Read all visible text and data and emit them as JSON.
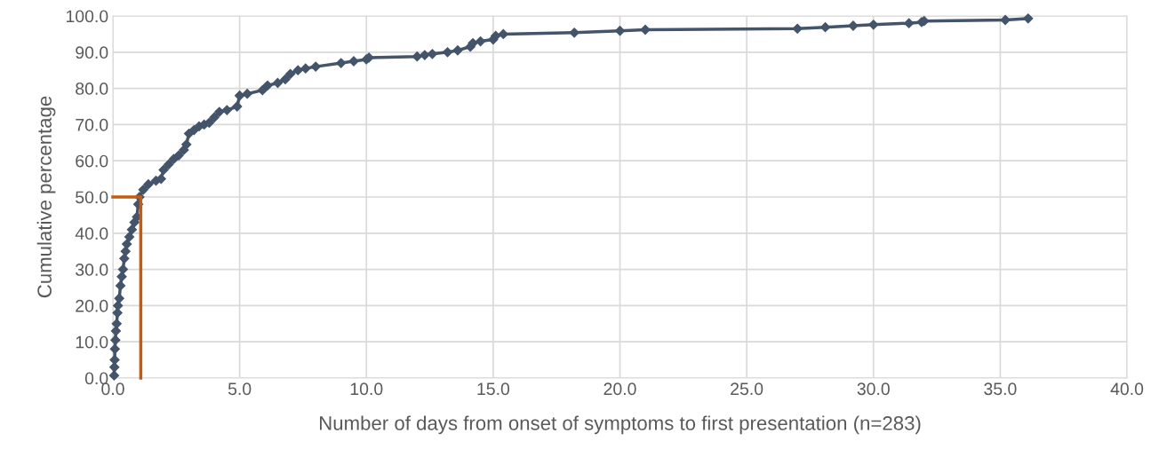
{
  "chart_data": {
    "type": "line",
    "xlabel": "Number of days from onset of symptoms to first presentation (n=283)",
    "ylabel": "Cumulative percentage",
    "xlim": [
      0,
      40
    ],
    "xticks": [
      {
        "value": 0,
        "label": "0.0"
      },
      {
        "value": 5,
        "label": "5.0"
      },
      {
        "value": 10,
        "label": "10.0"
      },
      {
        "value": 15,
        "label": "15.0"
      },
      {
        "value": 20,
        "label": "20.0"
      },
      {
        "value": 25,
        "label": "25.0"
      },
      {
        "value": 30,
        "label": "30.0"
      },
      {
        "value": 35,
        "label": "35.0"
      },
      {
        "value": 40,
        "label": "40.0"
      }
    ],
    "ylim": [
      0,
      100
    ],
    "yticks": [
      {
        "value": 0,
        "label": "0.0"
      },
      {
        "value": 10,
        "label": "10.0"
      },
      {
        "value": 20,
        "label": "20.0"
      },
      {
        "value": 30,
        "label": "30.0"
      },
      {
        "value": 40,
        "label": "40.0"
      },
      {
        "value": 50,
        "label": "50.0"
      },
      {
        "value": 60,
        "label": "60.0"
      },
      {
        "value": 70,
        "label": "70.0"
      },
      {
        "value": 80,
        "label": "80.0"
      },
      {
        "value": 90,
        "label": "90.0"
      },
      {
        "value": 100,
        "label": "100.0"
      }
    ],
    "grid": true,
    "series": [
      {
        "color": "#44546a",
        "marker": "diamond",
        "x": [
          0.05,
          0.06,
          0.07,
          0.08,
          0.1,
          0.12,
          0.15,
          0.18,
          0.2,
          0.25,
          0.3,
          0.35,
          0.4,
          0.45,
          0.5,
          0.55,
          0.65,
          0.75,
          0.85,
          0.95,
          1.0,
          1.05,
          1.2,
          1.4,
          1.7,
          1.9,
          2.0,
          2.2,
          2.4,
          2.6,
          2.8,
          2.9,
          3.0,
          3.2,
          3.4,
          3.6,
          3.8,
          4.0,
          4.2,
          4.5,
          4.9,
          5.0,
          5.3,
          5.9,
          6.1,
          6.5,
          6.8,
          7.0,
          7.3,
          7.6,
          8.0,
          9.0,
          9.5,
          10.0,
          10.1,
          12.0,
          12.3,
          12.6,
          13.2,
          13.6,
          14.1,
          14.2,
          14.5,
          15.0,
          15.1,
          15.4,
          18.2,
          20.0,
          21.0,
          27.0,
          28.1,
          29.2,
          30.0,
          31.4,
          31.9,
          32.0,
          35.2,
          36.1
        ],
        "values": [
          0.7,
          3,
          5,
          8,
          10.5,
          13,
          15,
          18,
          20,
          22,
          25.5,
          28,
          30,
          33,
          35,
          37,
          39,
          41,
          43,
          44.5,
          48,
          50,
          52,
          53.5,
          54.5,
          55,
          57.5,
          59,
          60.5,
          61.5,
          63,
          64.5,
          67.5,
          68.5,
          69.5,
          70,
          70.5,
          72,
          73.5,
          74,
          75,
          78,
          78.5,
          79.5,
          80.8,
          81.5,
          82.5,
          84,
          85,
          85.5,
          86,
          87,
          87.5,
          88,
          88.5,
          88.8,
          89.2,
          89.5,
          90,
          90.5,
          91.5,
          92.5,
          93,
          93.5,
          94.5,
          95,
          95.4,
          95.9,
          96.2,
          96.5,
          96.9,
          97.3,
          97.6,
          98,
          98.3,
          98.6,
          98.9,
          99.3
        ]
      },
      {
        "color": "#c55a11",
        "marker": "none",
        "x": [
          0,
          1.1,
          1.1
        ],
        "values": [
          50,
          50,
          0
        ]
      }
    ]
  }
}
